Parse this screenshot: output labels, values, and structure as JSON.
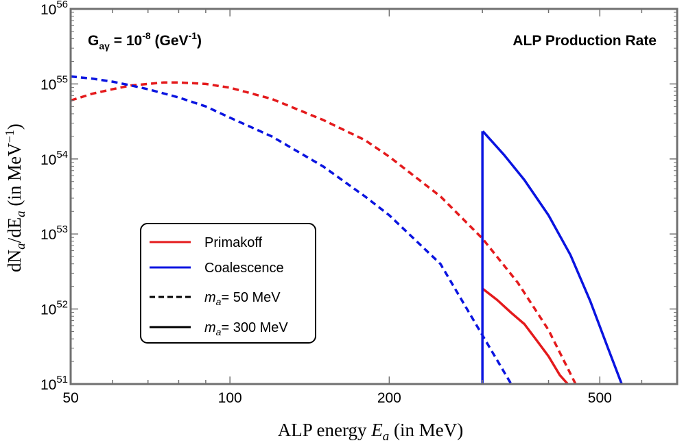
{
  "chart_data": {
    "type": "line",
    "title": "",
    "xlabel": {
      "prefix": "ALP energy ",
      "symbol": "E",
      "sub": "a",
      "suffix": " (in MeV)"
    },
    "ylabel": {
      "p1": "dN",
      "s1": "a",
      "p2": "/dE",
      "s2": "a",
      "p3": " (in MeV",
      "sup": "−1",
      "p4": ")"
    },
    "xscale": "log",
    "yscale": "log",
    "xlim": [
      50,
      700
    ],
    "ylim_exp": [
      51,
      56
    ],
    "grid": false,
    "x_ticks": [
      {
        "value": 50,
        "label": "50",
        "major": true
      },
      {
        "value": 60,
        "label": "",
        "major": false
      },
      {
        "value": 70,
        "label": "",
        "major": false
      },
      {
        "value": 80,
        "label": "",
        "major": false
      },
      {
        "value": 90,
        "label": "",
        "major": false
      },
      {
        "value": 100,
        "label": "100",
        "major": true
      },
      {
        "value": 200,
        "label": "200",
        "major": true
      },
      {
        "value": 300,
        "label": "",
        "major": false
      },
      {
        "value": 400,
        "label": "",
        "major": false
      },
      {
        "value": 500,
        "label": "500",
        "major": true
      },
      {
        "value": 600,
        "label": "",
        "major": false
      },
      {
        "value": 700,
        "label": "",
        "major": false
      }
    ],
    "y_ticks": [
      {
        "exp": 51,
        "base": "10",
        "sup": "51"
      },
      {
        "exp": 52,
        "base": "10",
        "sup": "52"
      },
      {
        "exp": 53,
        "base": "10",
        "sup": "53"
      },
      {
        "exp": 54,
        "base": "10",
        "sup": "54"
      },
      {
        "exp": 55,
        "base": "10",
        "sup": "55"
      },
      {
        "exp": 56,
        "base": "10",
        "sup": "56"
      }
    ],
    "annotations": {
      "coupling": {
        "g": "G",
        "sub": "aγ",
        "eq": " = 10",
        "sup": "-8",
        "unit": " (GeV",
        "unit_sup": "-1",
        "close": ")"
      },
      "label": "ALP Production Rate"
    },
    "legend": {
      "placement": "lower-left",
      "entries": [
        {
          "label": "Primakoff",
          "color": "#e41a1c",
          "dash": false
        },
        {
          "label": "Coalescence",
          "color": "#0a14e0",
          "dash": false
        },
        {
          "label_italic": "m",
          "label_sub": "a",
          "label_rest": "= 50 MeV",
          "color": "#000000",
          "dash": true
        },
        {
          "label_italic": "m",
          "label_sub": "a",
          "label_rest": "= 300 MeV",
          "color": "#000000",
          "dash": false
        }
      ]
    },
    "series": [
      {
        "name": "Primakoff",
        "variant": "ma = 50 MeV",
        "color": "#e41a1c",
        "dash": true,
        "x": [
          50,
          55,
          60,
          65,
          70,
          75,
          80,
          90,
          100,
          120,
          150,
          180,
          200,
          250,
          300,
          350,
          400,
          450
        ],
        "log10y": [
          54.78,
          54.87,
          54.93,
          54.98,
          55.0,
          55.02,
          55.02,
          55.0,
          54.95,
          54.8,
          54.52,
          54.25,
          54.03,
          53.5,
          52.94,
          52.35,
          51.72,
          51.0
        ]
      },
      {
        "name": "Coalescence",
        "variant": "ma = 50 MeV",
        "color": "#0a14e0",
        "dash": true,
        "x": [
          50,
          55,
          60,
          65,
          70,
          80,
          90,
          100,
          120,
          150,
          180,
          200,
          250,
          300,
          340
        ],
        "log10y": [
          55.1,
          55.07,
          55.03,
          54.98,
          54.93,
          54.82,
          54.7,
          54.55,
          54.3,
          53.9,
          53.5,
          53.25,
          52.6,
          51.65,
          51.0
        ]
      },
      {
        "name": "Primakoff",
        "variant": "ma = 300 MeV",
        "color": "#e41a1c",
        "dash": false,
        "x": [
          300.5,
          320,
          340,
          360,
          380,
          400,
          420,
          435
        ],
        "log10y": [
          52.27,
          52.12,
          51.95,
          51.8,
          51.58,
          51.37,
          51.12,
          51.0
        ]
      },
      {
        "name": "Coalescence",
        "variant": "ma = 300 MeV",
        "color": "#0a14e0",
        "dash": false,
        "x": [
          300.5,
          330,
          360,
          400,
          440,
          480,
          520,
          550
        ],
        "log10y": [
          54.37,
          54.05,
          53.72,
          53.25,
          52.72,
          52.1,
          51.45,
          51.0
        ]
      }
    ],
    "vertical_edge": {
      "x": 300,
      "color": "#0a14e0",
      "log10y_range": [
        51,
        54.37
      ]
    }
  }
}
